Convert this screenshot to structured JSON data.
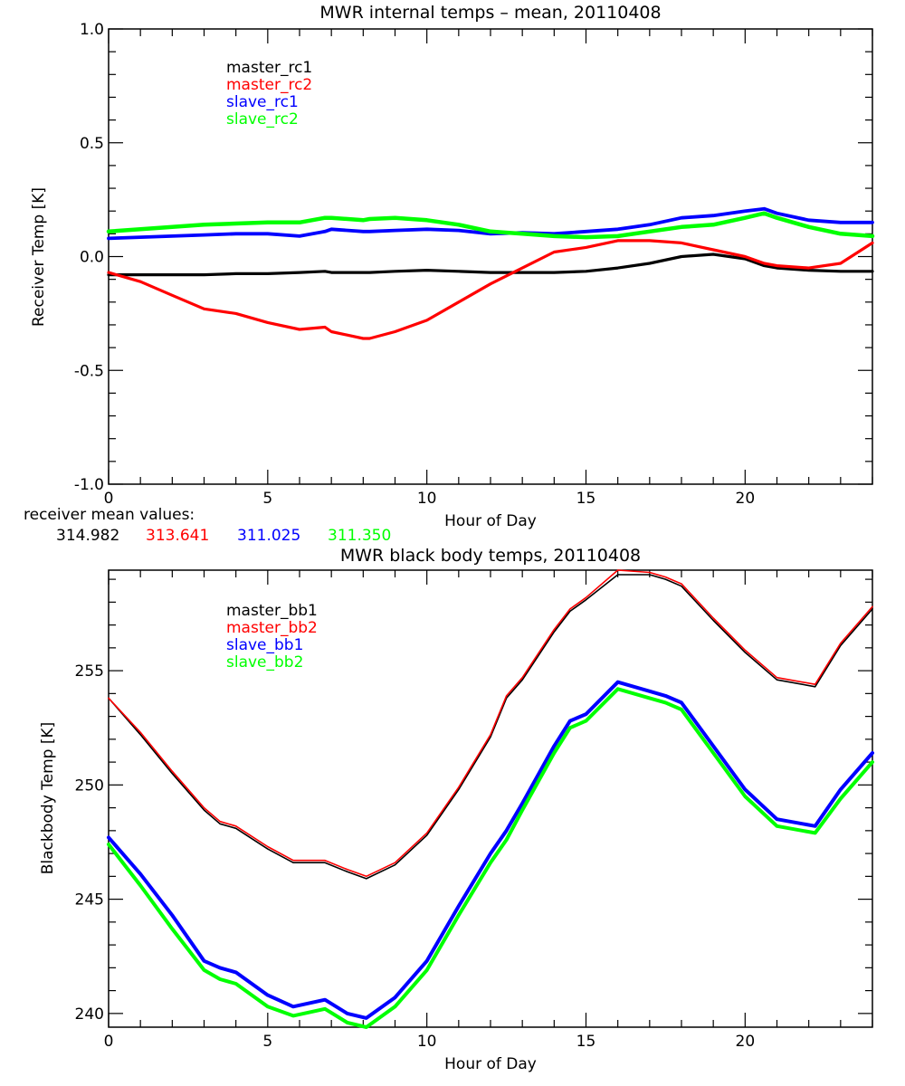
{
  "chart_data": [
    {
      "type": "line",
      "title": "MWR internal temps – mean, 20110408",
      "xlabel": "Hour of Day",
      "ylabel": "Receiver Temp [K]",
      "xlim": [
        0,
        24
      ],
      "ylim": [
        -1.0,
        1.0
      ],
      "xticks": [
        0,
        5,
        10,
        15,
        20
      ],
      "xtick_labels": [
        "0",
        "5",
        "10",
        "15",
        "20"
      ],
      "yticks": [
        -1.0,
        -0.5,
        0.0,
        0.5,
        1.0
      ],
      "ytick_labels": [
        "-1.0",
        "-0.5",
        "0.0",
        "0.5",
        "1.0"
      ],
      "legend_position": "top-left",
      "x": [
        0,
        1,
        2,
        3,
        4,
        5,
        6,
        6.8,
        7,
        8,
        8.2,
        9,
        10,
        11,
        12,
        13,
        14,
        15,
        16,
        17,
        18,
        19,
        20,
        20.6,
        21,
        22,
        23,
        24
      ],
      "series": [
        {
          "name": "master_rc1",
          "color": "#000000",
          "values": [
            -0.08,
            -0.08,
            -0.08,
            -0.08,
            -0.075,
            -0.075,
            -0.07,
            -0.065,
            -0.07,
            -0.07,
            -0.07,
            -0.065,
            -0.06,
            -0.065,
            -0.07,
            -0.07,
            -0.07,
            -0.065,
            -0.05,
            -0.03,
            0.0,
            0.01,
            -0.01,
            -0.04,
            -0.05,
            -0.06,
            -0.065,
            -0.065
          ]
        },
        {
          "name": "master_rc2",
          "color": "#ff0000",
          "values": [
            -0.07,
            -0.11,
            -0.17,
            -0.23,
            -0.25,
            -0.29,
            -0.32,
            -0.31,
            -0.33,
            -0.36,
            -0.36,
            -0.33,
            -0.28,
            -0.2,
            -0.12,
            -0.05,
            0.02,
            0.04,
            0.07,
            0.07,
            0.06,
            0.03,
            0.0,
            -0.03,
            -0.04,
            -0.05,
            -0.03,
            0.06
          ]
        },
        {
          "name": "slave_rc1",
          "color": "#0000ff",
          "values": [
            0.08,
            0.085,
            0.09,
            0.095,
            0.1,
            0.1,
            0.09,
            0.11,
            0.12,
            0.11,
            0.11,
            0.115,
            0.12,
            0.115,
            0.1,
            0.105,
            0.1,
            0.11,
            0.12,
            0.14,
            0.17,
            0.18,
            0.2,
            0.21,
            0.19,
            0.16,
            0.15,
            0.15
          ]
        },
        {
          "name": "slave_rc2",
          "color": "#00ff00",
          "values": [
            0.11,
            0.12,
            0.13,
            0.14,
            0.145,
            0.15,
            0.15,
            0.17,
            0.17,
            0.16,
            0.165,
            0.17,
            0.16,
            0.14,
            0.11,
            0.1,
            0.09,
            0.085,
            0.09,
            0.11,
            0.13,
            0.14,
            0.17,
            0.19,
            0.17,
            0.13,
            0.1,
            0.09
          ]
        }
      ],
      "annotation": {
        "label": "receiver mean values:",
        "values": [
          {
            "value": "314.982",
            "color": "#000000"
          },
          {
            "value": "313.641",
            "color": "#ff0000"
          },
          {
            "value": "311.025",
            "color": "#0000ff"
          },
          {
            "value": "311.350",
            "color": "#00ff00"
          }
        ]
      }
    },
    {
      "type": "line",
      "title": "MWR black body temps, 20110408",
      "xlabel": "Hour of Day",
      "ylabel": "Blackbody Temp [K]",
      "xlim": [
        0,
        24
      ],
      "ylim": [
        239.4,
        259.4
      ],
      "xticks": [
        0,
        5,
        10,
        15,
        20
      ],
      "xtick_labels": [
        "0",
        "5",
        "10",
        "15",
        "20"
      ],
      "yticks": [
        240,
        245,
        250,
        255
      ],
      "ytick_labels": [
        "240",
        "245",
        "250",
        "255"
      ],
      "legend_position": "top-left",
      "x": [
        0,
        1,
        2,
        3,
        3.5,
        4,
        5,
        5.8,
        6.8,
        7.5,
        8.1,
        9,
        10,
        11,
        12,
        12.5,
        13,
        14,
        14.5,
        15,
        16,
        17,
        17.5,
        18,
        19,
        20,
        21,
        22.2,
        23,
        24
      ],
      "series": [
        {
          "name": "master_bb1",
          "color": "#000000",
          "values": [
            253.8,
            252.2,
            250.5,
            248.9,
            248.3,
            248.1,
            247.2,
            246.6,
            246.6,
            246.2,
            245.9,
            246.5,
            247.8,
            249.8,
            252.1,
            253.8,
            254.6,
            256.7,
            257.6,
            258.1,
            259.2,
            259.2,
            259.0,
            258.7,
            257.2,
            255.8,
            254.6,
            254.3,
            256.1,
            257.7
          ]
        },
        {
          "name": "master_bb2",
          "color": "#ff0000",
          "values": [
            253.8,
            252.3,
            250.6,
            249.0,
            248.4,
            248.2,
            247.3,
            246.7,
            246.7,
            246.3,
            246.0,
            246.6,
            247.9,
            249.9,
            252.2,
            253.9,
            254.7,
            256.8,
            257.7,
            258.2,
            259.4,
            259.3,
            259.1,
            258.8,
            257.3,
            255.9,
            254.7,
            254.4,
            256.2,
            257.8
          ]
        },
        {
          "name": "slave_bb1",
          "color": "#0000ff",
          "values": [
            247.7,
            246.1,
            244.3,
            242.3,
            242.0,
            241.8,
            240.8,
            240.3,
            240.6,
            240.0,
            239.8,
            240.7,
            242.3,
            244.7,
            247.0,
            248.0,
            249.2,
            251.7,
            252.8,
            253.1,
            254.5,
            254.1,
            253.9,
            253.6,
            251.7,
            249.8,
            248.5,
            248.2,
            249.8,
            251.4
          ]
        },
        {
          "name": "slave_bb2",
          "color": "#00ff00",
          "values": [
            247.4,
            245.6,
            243.7,
            241.9,
            241.5,
            241.3,
            240.3,
            239.9,
            240.2,
            239.6,
            239.4,
            240.3,
            241.9,
            244.3,
            246.6,
            247.6,
            248.9,
            251.4,
            252.5,
            252.8,
            254.2,
            253.8,
            253.6,
            253.3,
            251.4,
            249.5,
            248.2,
            247.9,
            249.4,
            251.0
          ]
        }
      ]
    }
  ]
}
